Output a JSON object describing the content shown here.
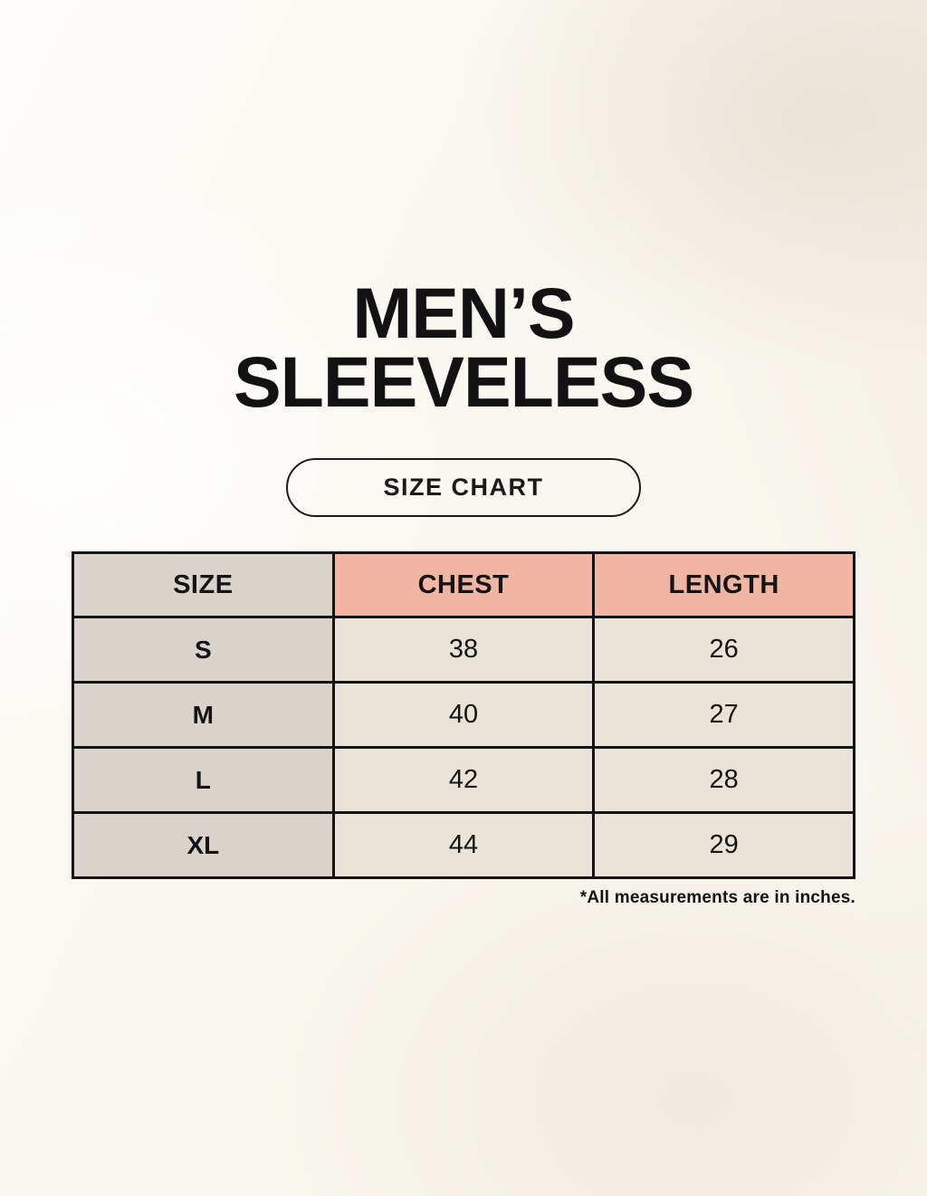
{
  "header": {
    "title_line1": "MEN’S",
    "title_line2": "SLEEVELESS",
    "badge_label": "SIZE CHART"
  },
  "footer": {
    "note": "*All measurements are in inches."
  },
  "colors": {
    "page_background": "#faf7f0",
    "header_cell_pink": "#f1b5a3",
    "size_column_gray": "#d9d3cc",
    "data_cell_cream": "#eae3d7",
    "table_border": "#161412",
    "text": "#141414"
  },
  "chart_data": {
    "type": "table",
    "title": "Men’s Sleeveless Size Chart",
    "columns": [
      "SIZE",
      "CHEST",
      "LENGTH"
    ],
    "rows": [
      {
        "size": "S",
        "chest": 38,
        "length": 26
      },
      {
        "size": "M",
        "chest": 40,
        "length": 27
      },
      {
        "size": "L",
        "chest": 42,
        "length": 28
      },
      {
        "size": "XL",
        "chest": 44,
        "length": 29
      }
    ],
    "units": "inches"
  }
}
